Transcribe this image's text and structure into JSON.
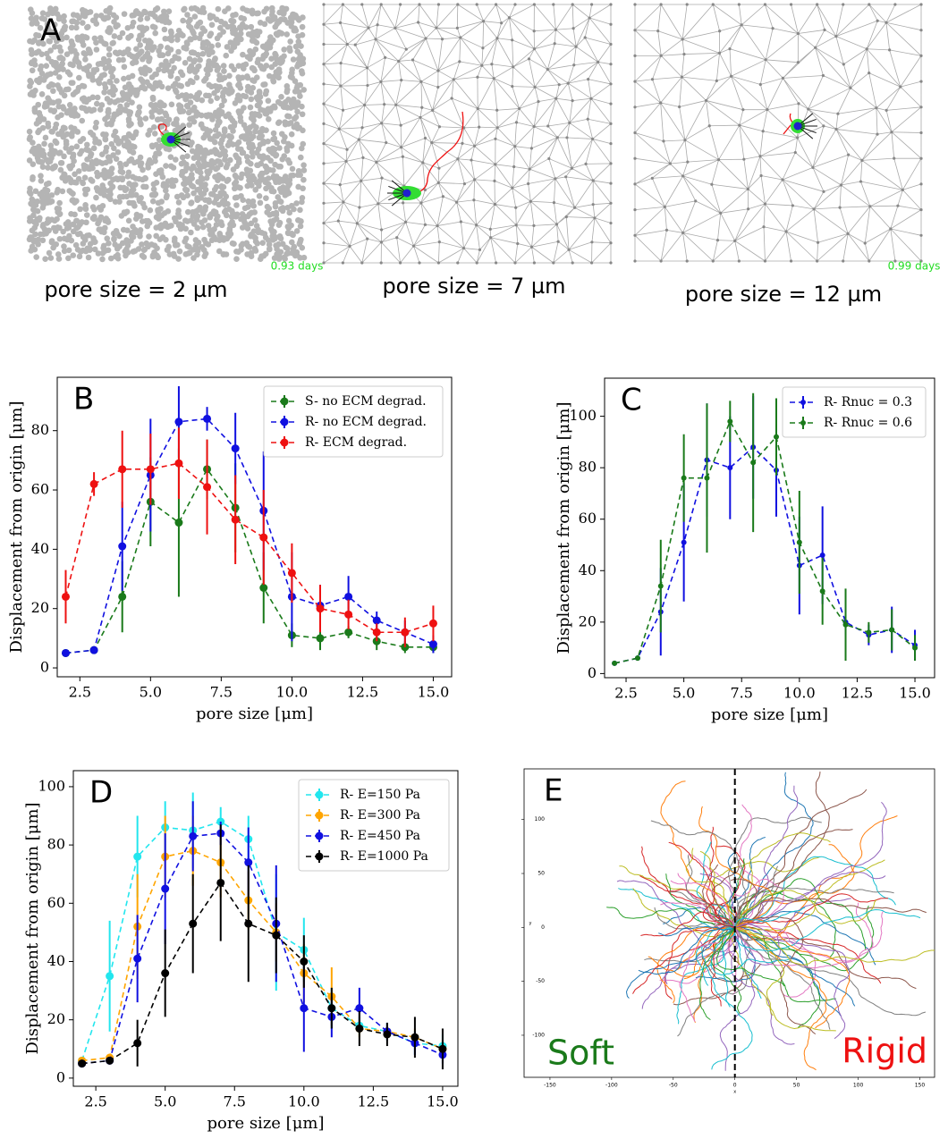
{
  "panel_a": {
    "letter": "A",
    "images": [
      {
        "caption": "pore size = 2 µm",
        "time": "0.93 days"
      },
      {
        "caption": "pore size = 7 µm"
      },
      {
        "caption": "pore size = 12 µm",
        "time": "0.99 days"
      }
    ]
  },
  "chart_data": [
    {
      "type": "line",
      "letter": "B",
      "xlabel": "pore size [μm]",
      "ylabel": "Displacement from origin [μm]",
      "x": [
        2,
        3,
        4,
        5,
        6,
        7,
        8,
        9,
        10,
        11,
        12,
        13,
        14,
        15
      ],
      "xlim": [
        1.7,
        15.65
      ],
      "ylim": [
        -3,
        98
      ],
      "xticks": [
        2.5,
        {
          "value": 5,
          "label": "5.0"
        },
        7.5,
        {
          "value": 10,
          "label": "10.0"
        },
        12.5,
        {
          "value": 15,
          "label": "15.0"
        }
      ],
      "yticks": [
        0,
        20,
        40,
        60,
        80
      ],
      "legend": "upper right",
      "series": [
        {
          "name": "S- no ECM degrad.",
          "color": "#1a7a1a",
          "values": [
            5,
            6,
            24,
            56,
            49,
            67,
            54,
            27,
            11,
            10,
            12,
            9,
            7,
            7
          ],
          "errors": [
            0.5,
            0.5,
            12,
            15,
            25,
            10,
            15,
            12,
            4,
            4,
            2,
            3,
            2,
            2
          ]
        },
        {
          "name": "R- no ECM degrad.",
          "color": "#1010e0",
          "values": [
            5,
            6,
            41,
            65,
            83,
            84,
            74,
            53,
            24,
            21,
            24,
            16,
            12,
            8
          ],
          "errors": [
            0.5,
            1,
            15,
            19,
            12,
            4,
            12,
            20,
            15,
            7,
            7,
            3,
            4,
            3
          ]
        },
        {
          "name": "R- ECM degrad.",
          "color": "#ee1111",
          "values": [
            24,
            62,
            67,
            67,
            69,
            61,
            50,
            44,
            32,
            20,
            18,
            12,
            12,
            15
          ],
          "errors": [
            9,
            4,
            13,
            12,
            12,
            16,
            15,
            16,
            10,
            8,
            5,
            3,
            5,
            6
          ]
        }
      ]
    },
    {
      "type": "line",
      "letter": "C",
      "xlabel": "pore size [μm]",
      "ylabel": "Displacement from origin [μm]",
      "x": [
        2,
        3,
        4,
        5,
        6,
        7,
        8,
        9,
        10,
        11,
        12,
        13,
        14,
        15
      ],
      "xlim": [
        1.57,
        15.85
      ],
      "ylim": [
        -1.6,
        114.8
      ],
      "xticks": [
        2.5,
        {
          "value": 5,
          "label": "5.0"
        },
        7.5,
        {
          "value": 10,
          "label": "10.0"
        },
        12.5,
        {
          "value": 15,
          "label": "15.0"
        }
      ],
      "yticks": [
        0,
        20,
        40,
        60,
        80,
        100
      ],
      "legend": "upper right",
      "series": [
        {
          "name": "R- Rnuc = 0.3",
          "color": "#1010e0",
          "values": [
            4,
            6,
            24,
            51,
            83,
            80,
            88,
            79,
            42,
            46,
            20,
            15,
            17,
            11
          ],
          "errors": [
            0.5,
            1,
            17,
            23,
            22,
            20,
            20,
            18,
            19,
            19,
            5,
            4,
            9,
            6
          ]
        },
        {
          "name": "R- Rnuc = 0.6",
          "color": "#1a7a1a",
          "values": [
            4,
            6,
            34,
            76,
            76,
            98,
            82,
            92,
            51,
            32,
            19,
            16,
            17,
            10
          ],
          "errors": [
            0.5,
            1,
            18,
            17,
            29,
            8,
            27,
            15,
            20,
            13,
            14,
            4,
            8,
            5
          ]
        }
      ]
    },
    {
      "type": "line",
      "letter": "D",
      "xlabel": "pore size [μm]",
      "ylabel": "Displacement from origin [μm]",
      "x": [
        2,
        3,
        4,
        5,
        6,
        7,
        8,
        9,
        10,
        11,
        12,
        13,
        14,
        15
      ],
      "xlim": [
        1.69,
        15.55
      ],
      "ylim": [
        -2.8,
        105.5
      ],
      "xticks": [
        2.5,
        {
          "value": 5,
          "label": "5.0"
        },
        7.5,
        {
          "value": 10,
          "label": "10.0"
        },
        12.5,
        {
          "value": 15,
          "label": "15.0"
        }
      ],
      "yticks": [
        0,
        20,
        40,
        60,
        80,
        100
      ],
      "legend": "upper right",
      "series": [
        {
          "name": "R- E=150 Pa",
          "color": "#22e6ee",
          "values": [
            6,
            35,
            76,
            86,
            85,
            88,
            82,
            50,
            44,
            24,
            18,
            16,
            12,
            11
          ],
          "errors": [
            1,
            19,
            14,
            9,
            13,
            5,
            8,
            20,
            11,
            7,
            3,
            3,
            4,
            4
          ]
        },
        {
          "name": "R- E=300 Pa",
          "color": "#ffa500",
          "values": [
            6,
            7,
            52,
            76,
            78,
            74,
            61,
            50,
            36,
            28,
            17,
            16,
            14,
            10
          ],
          "errors": [
            1,
            1,
            18,
            14,
            12,
            12,
            10,
            10,
            10,
            10,
            3,
            2,
            3,
            3
          ]
        },
        {
          "name": "R- E=450 Pa",
          "color": "#1010e0",
          "values": [
            5,
            6,
            41,
            65,
            83,
            84,
            74,
            53,
            24,
            21,
            24,
            16,
            12,
            8
          ],
          "errors": [
            0.5,
            1,
            15,
            19,
            12,
            4,
            12,
            20,
            15,
            7,
            7,
            3,
            4,
            3
          ]
        },
        {
          "name": "R- E=1000 Pa",
          "color": "#000000",
          "values": [
            5,
            6,
            12,
            36,
            53,
            67,
            53,
            49,
            40,
            24,
            17,
            15,
            14,
            10
          ],
          "errors": [
            1,
            1,
            8,
            15,
            17,
            20,
            20,
            13,
            9,
            7,
            6,
            4,
            7,
            7
          ]
        }
      ]
    },
    {
      "type": "trajectory",
      "letter": "E",
      "xlabel": "x",
      "ylabel": "y",
      "xlim": [
        -171,
        162
      ],
      "ylim": [
        -139,
        147
      ],
      "xticks": [
        -150,
        -100,
        -50,
        0,
        50,
        100,
        150
      ],
      "yticks": [
        100,
        50,
        0,
        -50,
        -100
      ],
      "vline": 0,
      "annotations": [
        {
          "text": "Soft",
          "color": "#1a7a1a"
        },
        {
          "text": "Rigid",
          "color": "#ee1111"
        }
      ]
    }
  ]
}
